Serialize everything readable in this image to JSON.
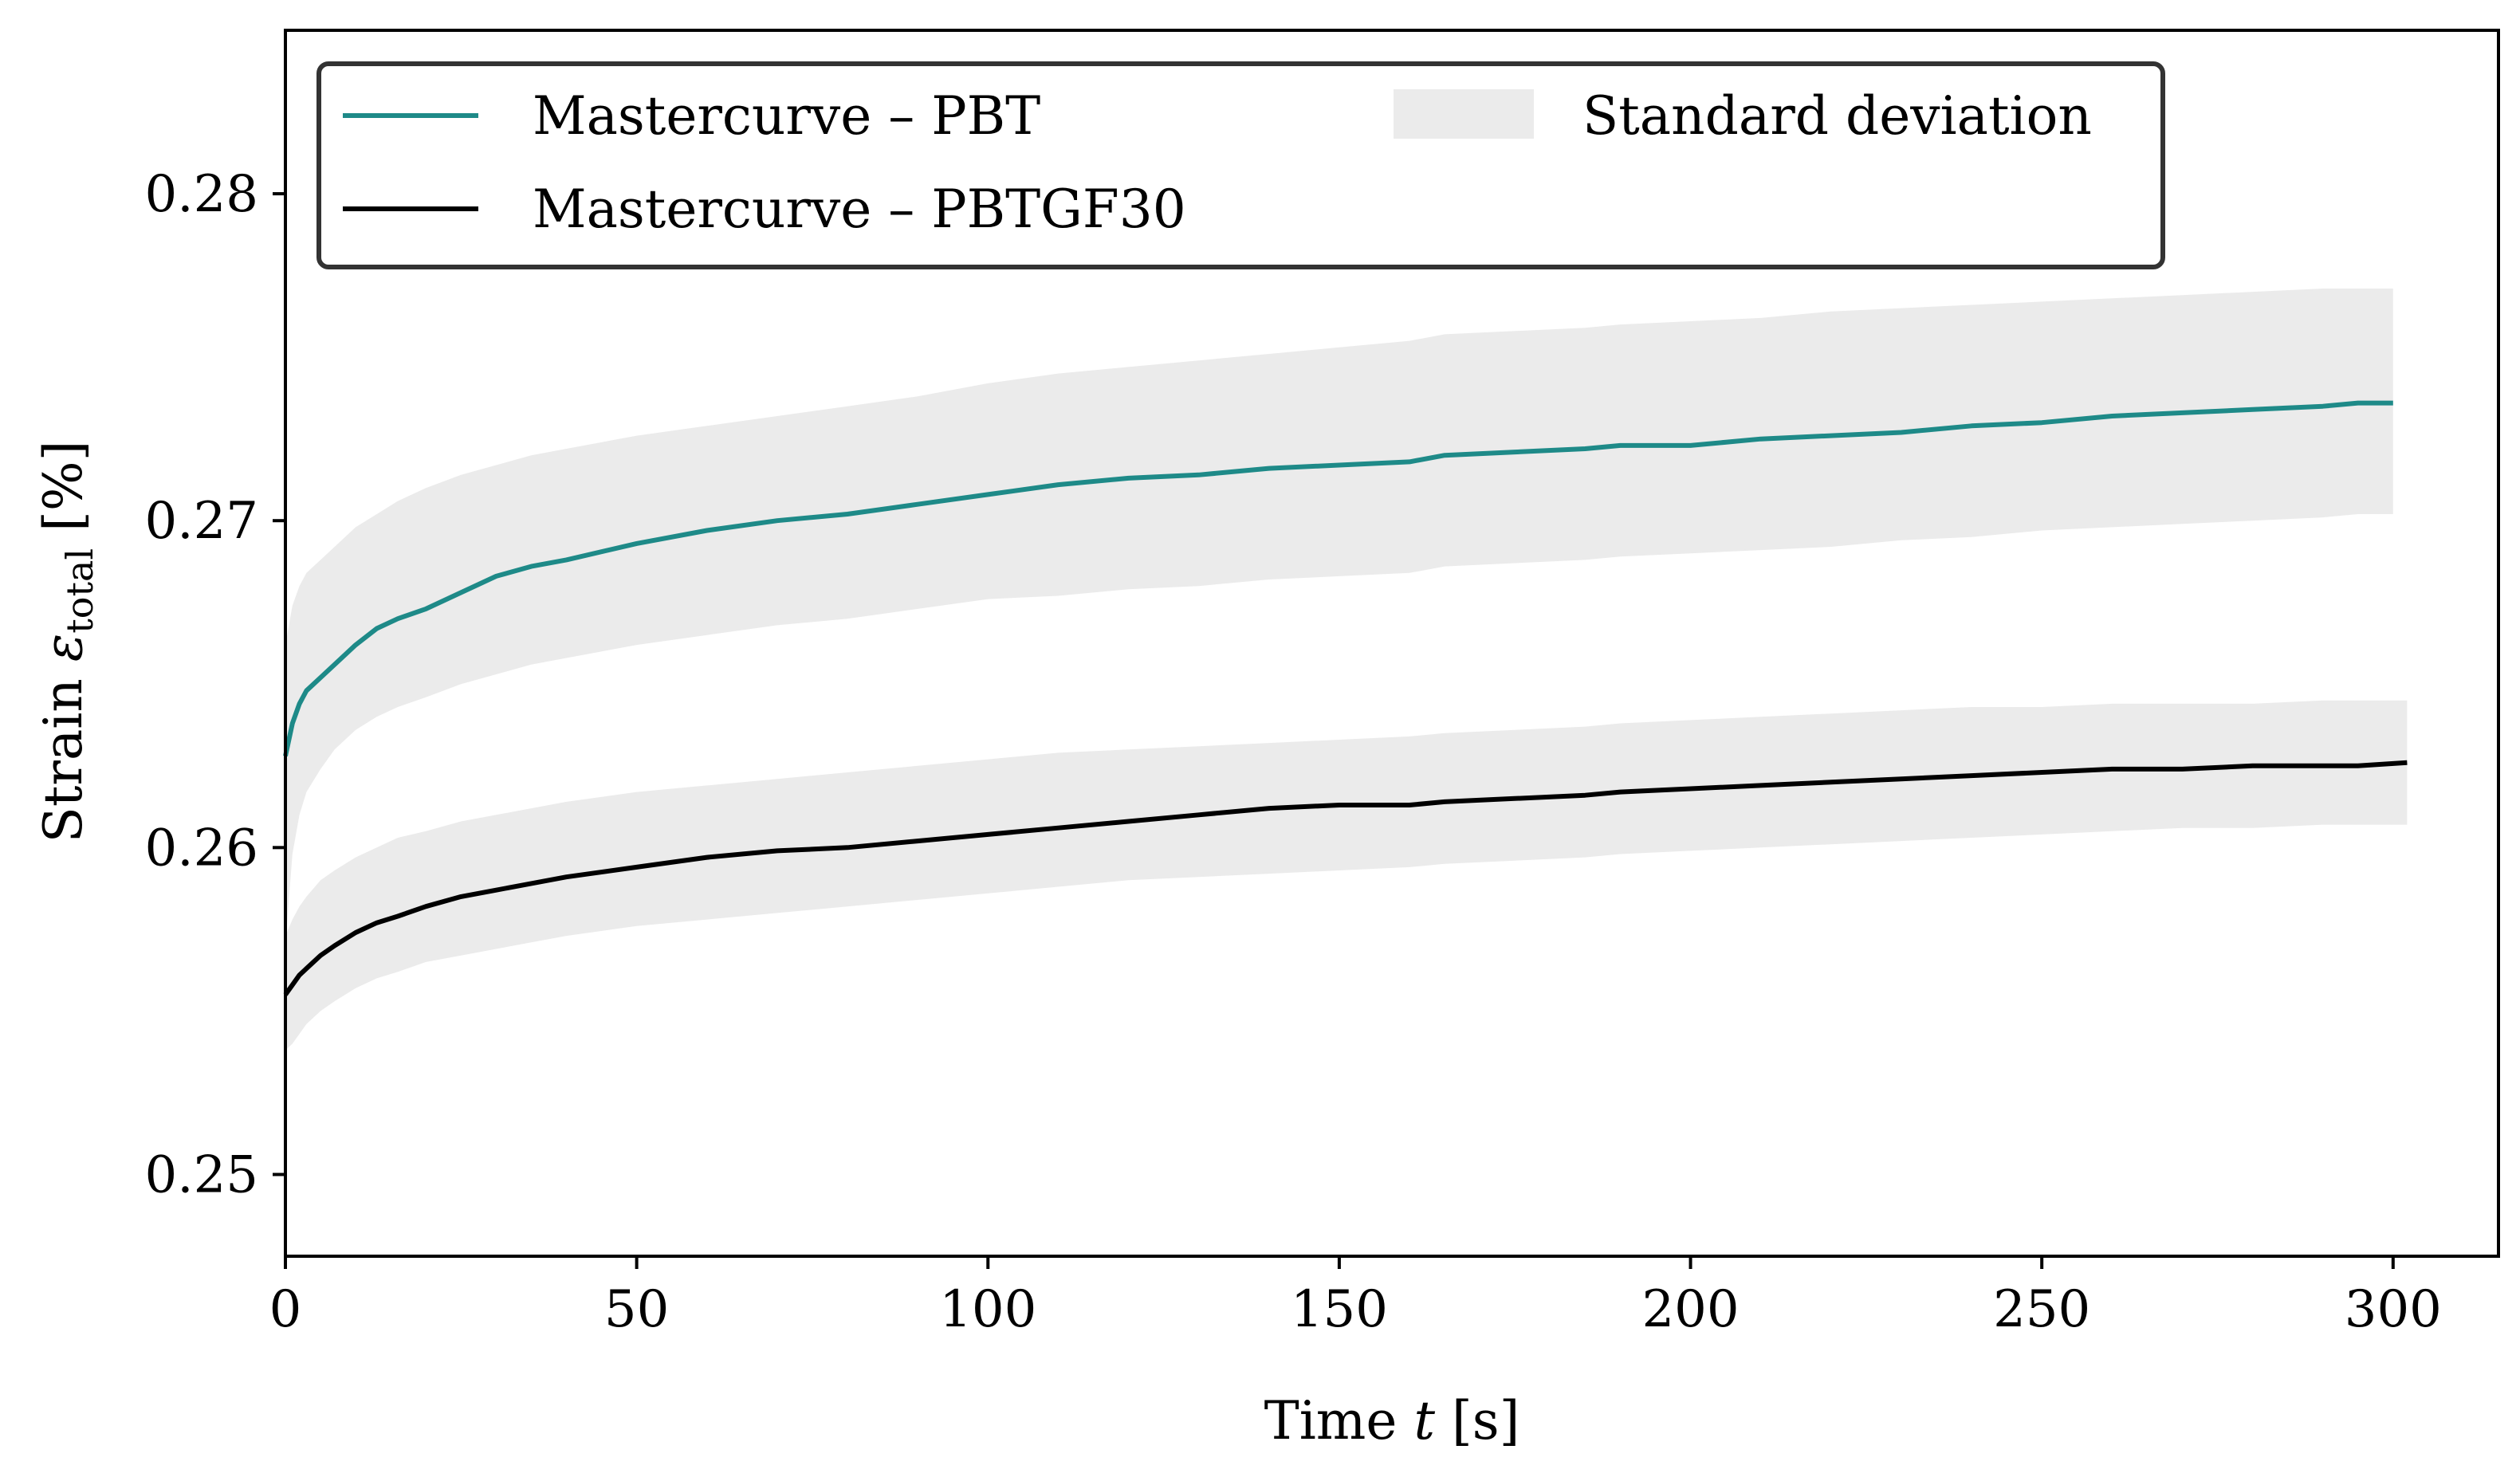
{
  "chart_data": {
    "type": "line",
    "title": "",
    "xlabel": "Time t [s]",
    "ylabel": "Strain ε_total [%]",
    "xlabel_parts": [
      "Time ",
      "t",
      " [s]"
    ],
    "ylabel_parts": [
      "Strain ",
      "ε",
      "total",
      " [%]"
    ],
    "xlim": [
      0,
      315
    ],
    "ylim": [
      0.2475,
      0.285
    ],
    "xticks": [
      0,
      50,
      100,
      150,
      200,
      250,
      300
    ],
    "xtick_labels": [
      "0",
      "50",
      "100",
      "150",
      "200",
      "250",
      "300"
    ],
    "yticks": [
      0.25,
      0.26,
      0.27,
      0.28
    ],
    "ytick_labels": [
      "0.25",
      "0.26",
      "0.27",
      "0.28"
    ],
    "grid": false,
    "legend_position": "top-left",
    "series": [
      {
        "name": "Mastercurve – PBT",
        "color": "#1e8a88",
        "x": [
          0,
          1,
          2,
          3,
          5,
          7,
          10,
          13,
          16,
          20,
          25,
          30,
          35,
          40,
          50,
          60,
          70,
          80,
          90,
          100,
          110,
          120,
          130,
          140,
          150,
          160,
          165,
          175,
          185,
          190,
          200,
          210,
          220,
          230,
          240,
          250,
          260,
          270,
          280,
          290,
          295,
          300
        ],
        "y": [
          0.2628,
          0.2638,
          0.2644,
          0.2648,
          0.2652,
          0.2656,
          0.2662,
          0.2667,
          0.267,
          0.2673,
          0.2678,
          0.2683,
          0.2686,
          0.2688,
          0.2693,
          0.2697,
          0.27,
          0.2702,
          0.2705,
          0.2708,
          0.2711,
          0.2713,
          0.2714,
          0.2716,
          0.2717,
          0.2718,
          0.272,
          0.2721,
          0.2722,
          0.2723,
          0.2723,
          0.2725,
          0.2726,
          0.2727,
          0.2729,
          0.273,
          0.2732,
          0.2733,
          0.2734,
          0.2735,
          0.2736,
          0.2736
        ],
        "std_lower": [
          0.257,
          0.2598,
          0.261,
          0.2617,
          0.2624,
          0.263,
          0.2636,
          0.264,
          0.2643,
          0.2646,
          0.265,
          0.2653,
          0.2656,
          0.2658,
          0.2662,
          0.2665,
          0.2668,
          0.267,
          0.2673,
          0.2676,
          0.2677,
          0.2679,
          0.268,
          0.2682,
          0.2683,
          0.2684,
          0.2686,
          0.2687,
          0.2688,
          0.2689,
          0.269,
          0.2691,
          0.2692,
          0.2694,
          0.2695,
          0.2697,
          0.2698,
          0.2699,
          0.27,
          0.2701,
          0.2702,
          0.2702
        ],
        "std_upper": [
          0.2662,
          0.2674,
          0.268,
          0.2684,
          0.2688,
          0.2692,
          0.2698,
          0.2702,
          0.2706,
          0.271,
          0.2714,
          0.2717,
          0.272,
          0.2722,
          0.2726,
          0.2729,
          0.2732,
          0.2735,
          0.2738,
          0.2742,
          0.2745,
          0.2747,
          0.2749,
          0.2751,
          0.2753,
          0.2755,
          0.2757,
          0.2758,
          0.2759,
          0.276,
          0.2761,
          0.2762,
          0.2764,
          0.2765,
          0.2766,
          0.2767,
          0.2768,
          0.2769,
          0.277,
          0.2771,
          0.2771,
          0.2771
        ]
      },
      {
        "name": "Mastercurve – PBTGF30",
        "color": "#000000",
        "x": [
          0,
          1,
          2,
          3,
          5,
          7,
          10,
          13,
          16,
          20,
          25,
          30,
          35,
          40,
          50,
          60,
          70,
          80,
          90,
          100,
          110,
          120,
          130,
          140,
          150,
          160,
          165,
          175,
          185,
          190,
          200,
          210,
          220,
          230,
          240,
          250,
          260,
          270,
          280,
          290,
          295,
          302
        ],
        "y": [
          0.2555,
          0.2558,
          0.2561,
          0.2563,
          0.2567,
          0.257,
          0.2574,
          0.2577,
          0.2579,
          0.2582,
          0.2585,
          0.2587,
          0.2589,
          0.2591,
          0.2594,
          0.2597,
          0.2599,
          0.26,
          0.2602,
          0.2604,
          0.2606,
          0.2608,
          0.261,
          0.2612,
          0.2613,
          0.2613,
          0.2614,
          0.2615,
          0.2616,
          0.2617,
          0.2618,
          0.2619,
          0.262,
          0.2621,
          0.2622,
          0.2623,
          0.2624,
          0.2624,
          0.2625,
          0.2625,
          0.2625,
          0.2626
        ],
        "std_lower": [
          0.2538,
          0.254,
          0.2543,
          0.2546,
          0.255,
          0.2553,
          0.2557,
          0.256,
          0.2562,
          0.2565,
          0.2567,
          0.2569,
          0.2571,
          0.2573,
          0.2576,
          0.2578,
          0.258,
          0.2582,
          0.2584,
          0.2586,
          0.2588,
          0.259,
          0.2591,
          0.2592,
          0.2593,
          0.2594,
          0.2595,
          0.2596,
          0.2597,
          0.2598,
          0.2599,
          0.26,
          0.2601,
          0.2602,
          0.2603,
          0.2604,
          0.2605,
          0.2606,
          0.2606,
          0.2607,
          0.2607,
          0.2607
        ],
        "std_upper": [
          0.2573,
          0.2578,
          0.2582,
          0.2585,
          0.259,
          0.2593,
          0.2597,
          0.26,
          0.2603,
          0.2605,
          0.2608,
          0.261,
          0.2612,
          0.2614,
          0.2617,
          0.2619,
          0.2621,
          0.2623,
          0.2625,
          0.2627,
          0.2629,
          0.263,
          0.2631,
          0.2632,
          0.2633,
          0.2634,
          0.2635,
          0.2636,
          0.2637,
          0.2638,
          0.2639,
          0.264,
          0.2641,
          0.2642,
          0.2643,
          0.2643,
          0.2644,
          0.2644,
          0.2644,
          0.2645,
          0.2645,
          0.2645
        ]
      }
    ],
    "legend": [
      {
        "label": "Mastercurve – PBT",
        "kind": "line",
        "color": "#1e8a88"
      },
      {
        "label": "Mastercurve – PBTGF30",
        "kind": "line",
        "color": "#000000"
      },
      {
        "label": "Standard deviation",
        "kind": "patch",
        "color": "#ebebeb"
      }
    ],
    "std_band_color": "#ebebeb"
  }
}
